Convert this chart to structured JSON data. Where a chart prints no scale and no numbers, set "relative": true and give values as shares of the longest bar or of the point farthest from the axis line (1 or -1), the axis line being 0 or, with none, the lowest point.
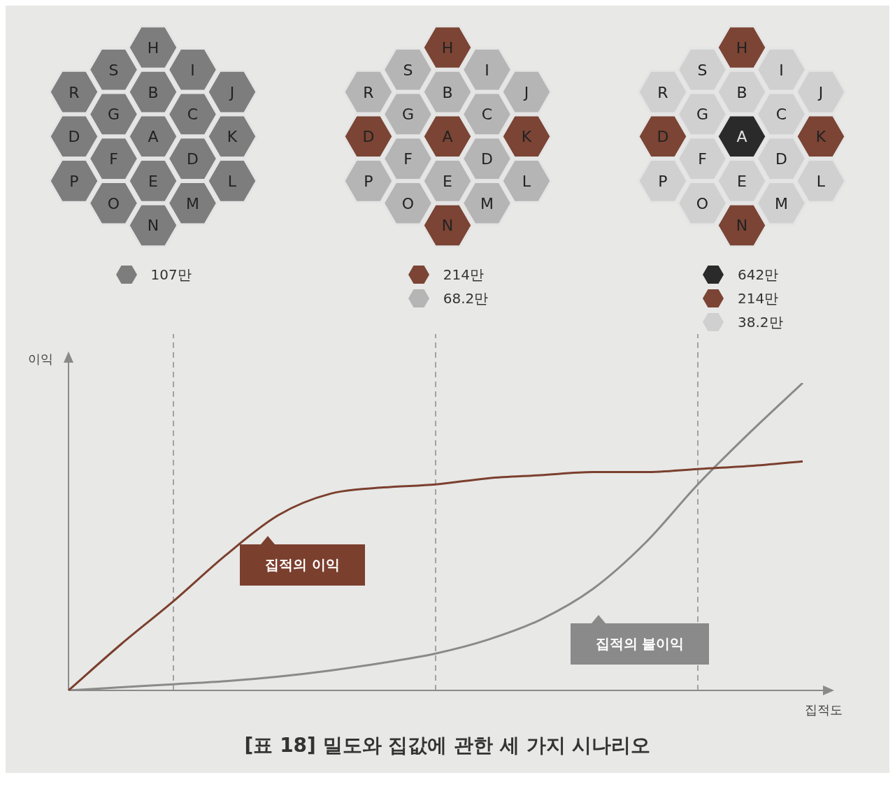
{
  "chart_data": [
    {
      "type": "other",
      "categories": [
        "R",
        "D",
        "P",
        "S",
        "G",
        "F",
        "O",
        "H",
        "B",
        "A",
        "E",
        "N",
        "I",
        "C",
        "D",
        "M",
        "J",
        "K",
        "L"
      ],
      "colors": [
        "#7d7d7d",
        "#7d7d7d",
        "#7d7d7d",
        "#7d7d7d",
        "#7d7d7d",
        "#7d7d7d",
        "#7d7d7d",
        "#7d7d7d",
        "#7d7d7d",
        "#7d7d7d",
        "#7d7d7d",
        "#7d7d7d",
        "#7d7d7d",
        "#7d7d7d",
        "#7d7d7d",
        "#7d7d7d",
        "#7d7d7d",
        "#7d7d7d",
        "#7d7d7d"
      ],
      "annotations": [
        "107만"
      ]
    },
    {
      "type": "other",
      "categories": [
        "R",
        "D",
        "P",
        "S",
        "G",
        "F",
        "O",
        "H",
        "B",
        "A",
        "E",
        "N",
        "I",
        "C",
        "D",
        "M",
        "J",
        "K",
        "L"
      ],
      "colors": [
        "#b5b5b5",
        "#7b4434",
        "#b5b5b5",
        "#b5b5b5",
        "#b5b5b5",
        "#b5b5b5",
        "#b5b5b5",
        "#7b4434",
        "#b5b5b5",
        "#7b4434",
        "#b5b5b5",
        "#7b4434",
        "#b5b5b5",
        "#b5b5b5",
        "#b5b5b5",
        "#b5b5b5",
        "#b5b5b5",
        "#7b4434",
        "#b5b5b5"
      ],
      "annotations": [
        "214만",
        "68.2만"
      ]
    },
    {
      "type": "other",
      "categories": [
        "R",
        "D",
        "P",
        "S",
        "G",
        "F",
        "O",
        "H",
        "B",
        "A",
        "E",
        "N",
        "I",
        "C",
        "D",
        "M",
        "J",
        "K",
        "L"
      ],
      "colors": [
        "#d0d0d0",
        "#7b4434",
        "#d0d0d0",
        "#d0d0d0",
        "#d0d0d0",
        "#d0d0d0",
        "#d0d0d0",
        "#7b4434",
        "#d0d0d0",
        "#2a2a2a",
        "#d0d0d0",
        "#7b4434",
        "#d0d0d0",
        "#d0d0d0",
        "#d0d0d0",
        "#d0d0d0",
        "#d0d0d0",
        "#7b4434",
        "#d0d0d0"
      ],
      "annotations": [
        "642만",
        "214만",
        "38.2만"
      ]
    },
    {
      "type": "line",
      "title": "[표 18] 밀도와 집값에 관한 세 가지 시나리오",
      "xlabel": "집적도",
      "ylabel": "이익",
      "relative": true,
      "tick_labels": false,
      "grid": "x",
      "legend": false,
      "marker": "none",
      "line_style": "solid",
      "categories": [
        null,
        null,
        null,
        null,
        null,
        null,
        null,
        null,
        null,
        null,
        null,
        null,
        null,
        null,
        null
      ],
      "series": [
        {
          "color": "#7b3f2e",
          "values": [
            0,
            0.15,
            0.29,
            0.44,
            0.57,
            0.64,
            0.66,
            0.67,
            0.69,
            0.7,
            0.71,
            0.71,
            0.72,
            0.73,
            0.745
          ]
        },
        {
          "color": "#8a8a8a",
          "values": [
            0,
            0.01,
            0.02,
            0.03,
            0.045,
            0.065,
            0.09,
            0.12,
            0.165,
            0.23,
            0.33,
            0.48,
            0.67,
            0.84,
            1
          ]
        }
      ],
      "annotations": [
        "집적의 이익",
        "집적의 불이익"
      ]
    }
  ]
}
